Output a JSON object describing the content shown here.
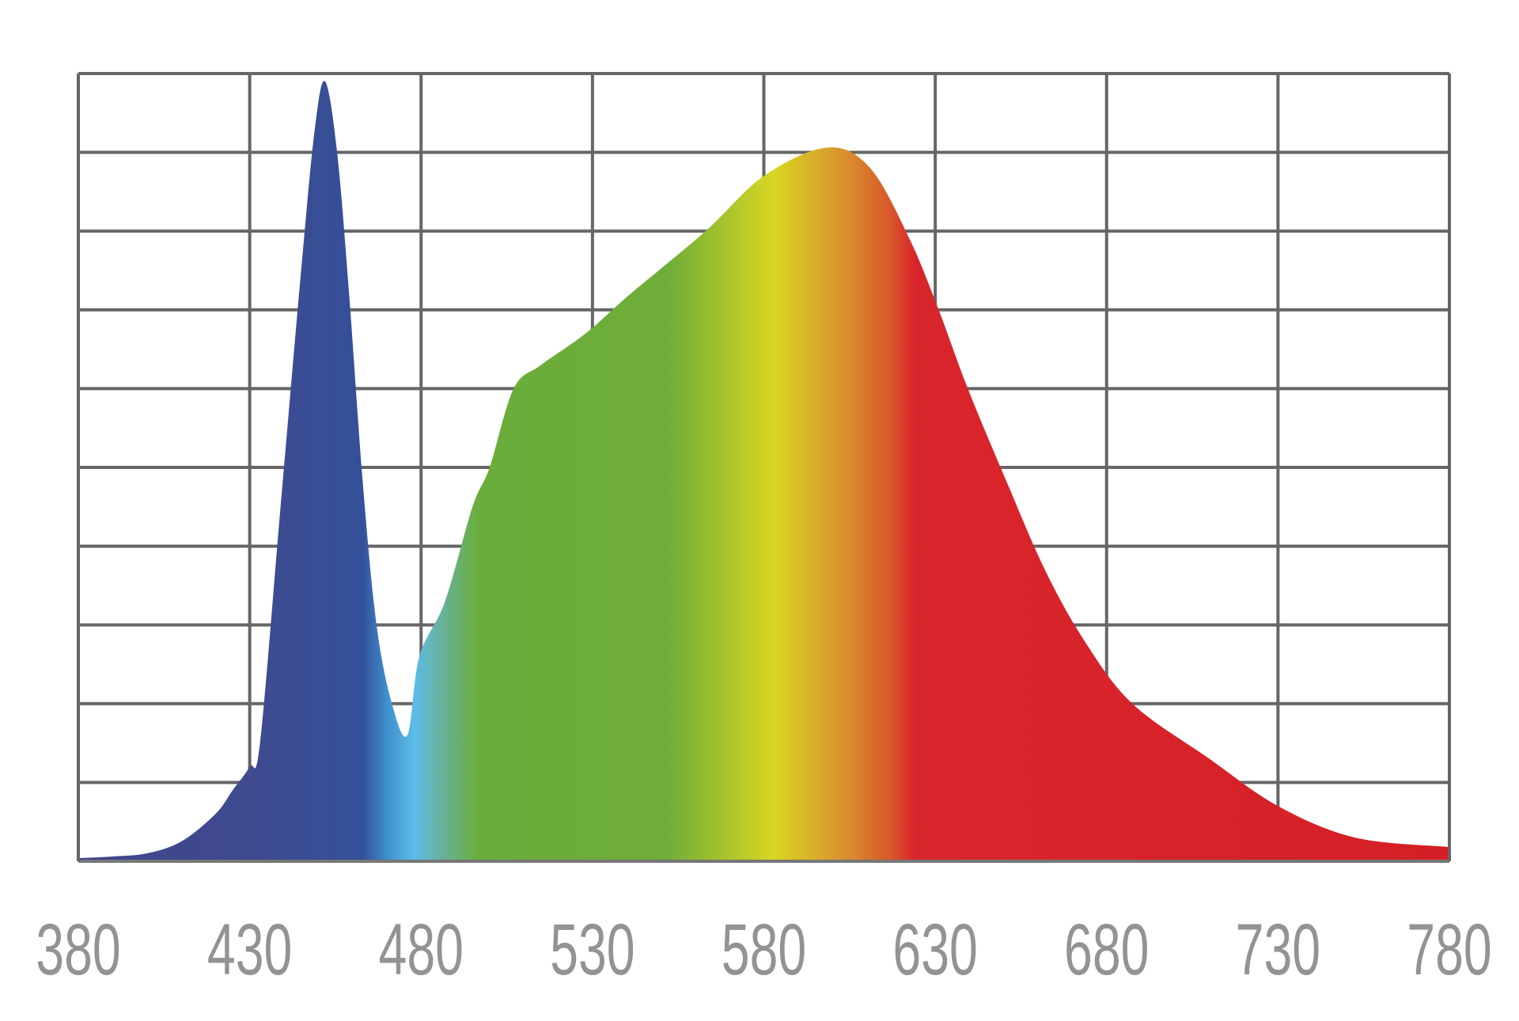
{
  "chart_data": {
    "type": "area",
    "title": "",
    "xlabel": "",
    "ylabel": "",
    "xlim": [
      380,
      780
    ],
    "ylim": [
      0,
      1
    ],
    "x_ticks": [
      "380",
      "430",
      "480",
      "530",
      "580",
      "630",
      "680",
      "730",
      "780"
    ],
    "x_tick_values": [
      380,
      430,
      480,
      530,
      580,
      630,
      680,
      730,
      780
    ],
    "y_gridlines": [
      0,
      0.1,
      0.2,
      0.3,
      0.4,
      0.5,
      0.6,
      0.7,
      0.8,
      0.9,
      1.0
    ],
    "y_tick_labels_shown": false,
    "grid": true,
    "grid_color": "#666666",
    "tick_label_color": "#939393",
    "x": [
      380,
      390,
      400,
      410,
      420,
      425,
      430,
      433,
      439,
      445,
      449,
      452,
      455.5,
      459,
      463,
      467,
      471.5,
      476,
      479.5,
      487,
      495,
      500,
      507,
      515,
      528,
      541,
      563,
      580,
      598.5,
      611,
      622.5,
      631,
      639.5,
      651,
      662,
      673.5,
      687.5,
      710,
      730,
      752.5,
      780
    ],
    "y": [
      0.004,
      0.006,
      0.01,
      0.025,
      0.06,
      0.09,
      0.12,
      0.15,
      0.45,
      0.75,
      0.93,
      0.99,
      0.9,
      0.72,
      0.48,
      0.3,
      0.2,
      0.16,
      0.26,
      0.33,
      0.45,
      0.5,
      0.6,
      0.63,
      0.67,
      0.72,
      0.8,
      0.87,
      0.906,
      0.88,
      0.79,
      0.7,
      0.6,
      0.48,
      0.37,
      0.28,
      0.2,
      0.13,
      0.07,
      0.03,
      0.018
    ],
    "fill_gradient": [
      {
        "nm": 380,
        "color": "#414489"
      },
      {
        "nm": 430,
        "color": "#3f4a8f"
      },
      {
        "nm": 463,
        "color": "#34509a"
      },
      {
        "nm": 470,
        "color": "#3f8fcd"
      },
      {
        "nm": 478,
        "color": "#5bbde8"
      },
      {
        "nm": 486,
        "color": "#68b19a"
      },
      {
        "nm": 497,
        "color": "#6aad3a"
      },
      {
        "nm": 552,
        "color": "#6fad38"
      },
      {
        "nm": 583,
        "color": "#d8d622"
      },
      {
        "nm": 603,
        "color": "#d9932e"
      },
      {
        "nm": 617,
        "color": "#d8572b"
      },
      {
        "nm": 624,
        "color": "#d8252b"
      },
      {
        "nm": 780,
        "color": "#d51f26"
      }
    ]
  }
}
